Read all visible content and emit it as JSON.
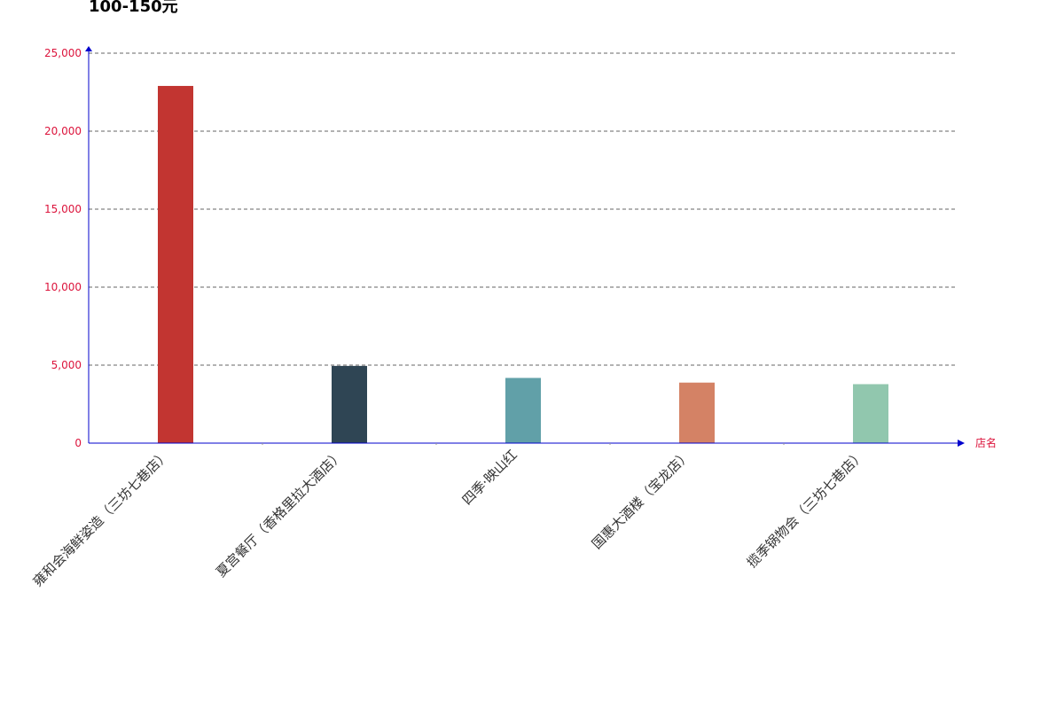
{
  "chart_data": {
    "type": "bar",
    "title": "100-150元",
    "xlabel": "店名",
    "ylabel": "",
    "categories": [
      "雍和会海鲜姿造（三坊七巷店）",
      "夏宫餐厅（香格里拉大酒店）",
      "四季·映山红",
      "国惠大酒楼（宝龙店）",
      "揽季锅物会（三坊七巷店）"
    ],
    "values": [
      22900,
      4950,
      4180,
      3880,
      3780
    ],
    "bar_colors": [
      "#c23531",
      "#2f4554",
      "#61a0a8",
      "#d48265",
      "#91c7ae"
    ],
    "ylim": [
      0,
      25000
    ],
    "yticks": [
      0,
      5000,
      10000,
      15000,
      20000,
      25000
    ],
    "ytick_labels": [
      "0",
      "5,000",
      "10,000",
      "15,000",
      "20,000",
      "25,000"
    ],
    "grid": true,
    "legend": "none",
    "axis_color": "#0000cd",
    "label_color": "#dc143c",
    "grid_color": "#666666"
  }
}
